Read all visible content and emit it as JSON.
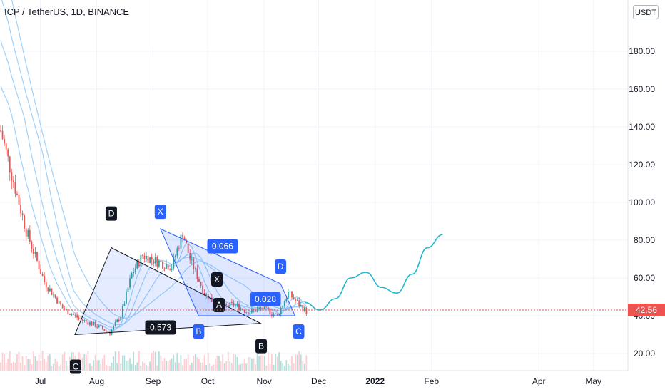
{
  "header": {
    "title": "ICP / TetherUS, 1D, BINANCE",
    "unit": "USDT"
  },
  "chart_data": {
    "type": "candlestick",
    "yticks": [
      "180.00",
      "160.00",
      "140.00",
      "120.00",
      "100.00",
      "80.00",
      "60.00",
      "40.00",
      "20.00"
    ],
    "ytick_values": [
      180,
      160,
      140,
      120,
      100,
      80,
      60,
      40,
      20
    ],
    "xticks": [
      {
        "label": "Jul",
        "x": "2021-07-01"
      },
      {
        "label": "Aug",
        "x": "2021-08-01"
      },
      {
        "label": "Sep",
        "x": "2021-09-01"
      },
      {
        "label": "Oct",
        "x": "2021-10-01"
      },
      {
        "label": "Nov",
        "x": "2021-11-01"
      },
      {
        "label": "Dec",
        "x": "2021-12-01"
      },
      {
        "label": "2022",
        "x": "2022-01-01",
        "bold": true
      },
      {
        "label": "Feb",
        "x": "2022-02-01"
      },
      {
        "label": "Apr",
        "x": "2022-04-01"
      },
      {
        "label": "May",
        "x": "2022-05-01"
      }
    ],
    "last_price": "42.56",
    "colors": {
      "up": "#26a69a",
      "down": "#ef5350",
      "pattern_dark": "#131722",
      "pattern_blue": "#2962ff",
      "projection": "#22b8cf",
      "ma": "#90caf9"
    },
    "patterns": {
      "dark": {
        "ratio": "0.573",
        "labels": [
          "D",
          "C",
          "B"
        ],
        "points": [
          {
            "label": "C",
            "x": "2021-07-20",
            "y": 30
          },
          {
            "label": "D",
            "x": "2021-08-09",
            "y": 76
          },
          {
            "label": "B",
            "x": "2021-10-30",
            "y": 36
          }
        ]
      },
      "blue_upper": {
        "ratio": "0.066",
        "labels": [
          "X",
          "D"
        ],
        "points": [
          {
            "label": "X",
            "x": "2021-09-05",
            "y": 86
          },
          {
            "label": "D",
            "x": "2021-11-10",
            "y": 57
          }
        ]
      },
      "blue_lower": {
        "labels": [
          "B",
          "C"
        ],
        "points": [
          {
            "label": "B",
            "x": "2021-09-26",
            "y": 40
          },
          {
            "label": "C",
            "x": "2021-11-18",
            "y": 40
          }
        ]
      },
      "inner_labels": [
        "X",
        "A",
        "0.028"
      ]
    },
    "projection_path": [
      [
        0,
        47
      ],
      [
        1,
        43
      ],
      [
        2,
        49
      ],
      [
        3,
        60
      ],
      [
        4,
        63
      ],
      [
        5,
        55
      ],
      [
        6,
        52
      ],
      [
        7,
        62
      ],
      [
        8,
        76
      ],
      [
        9,
        83
      ]
    ]
  }
}
